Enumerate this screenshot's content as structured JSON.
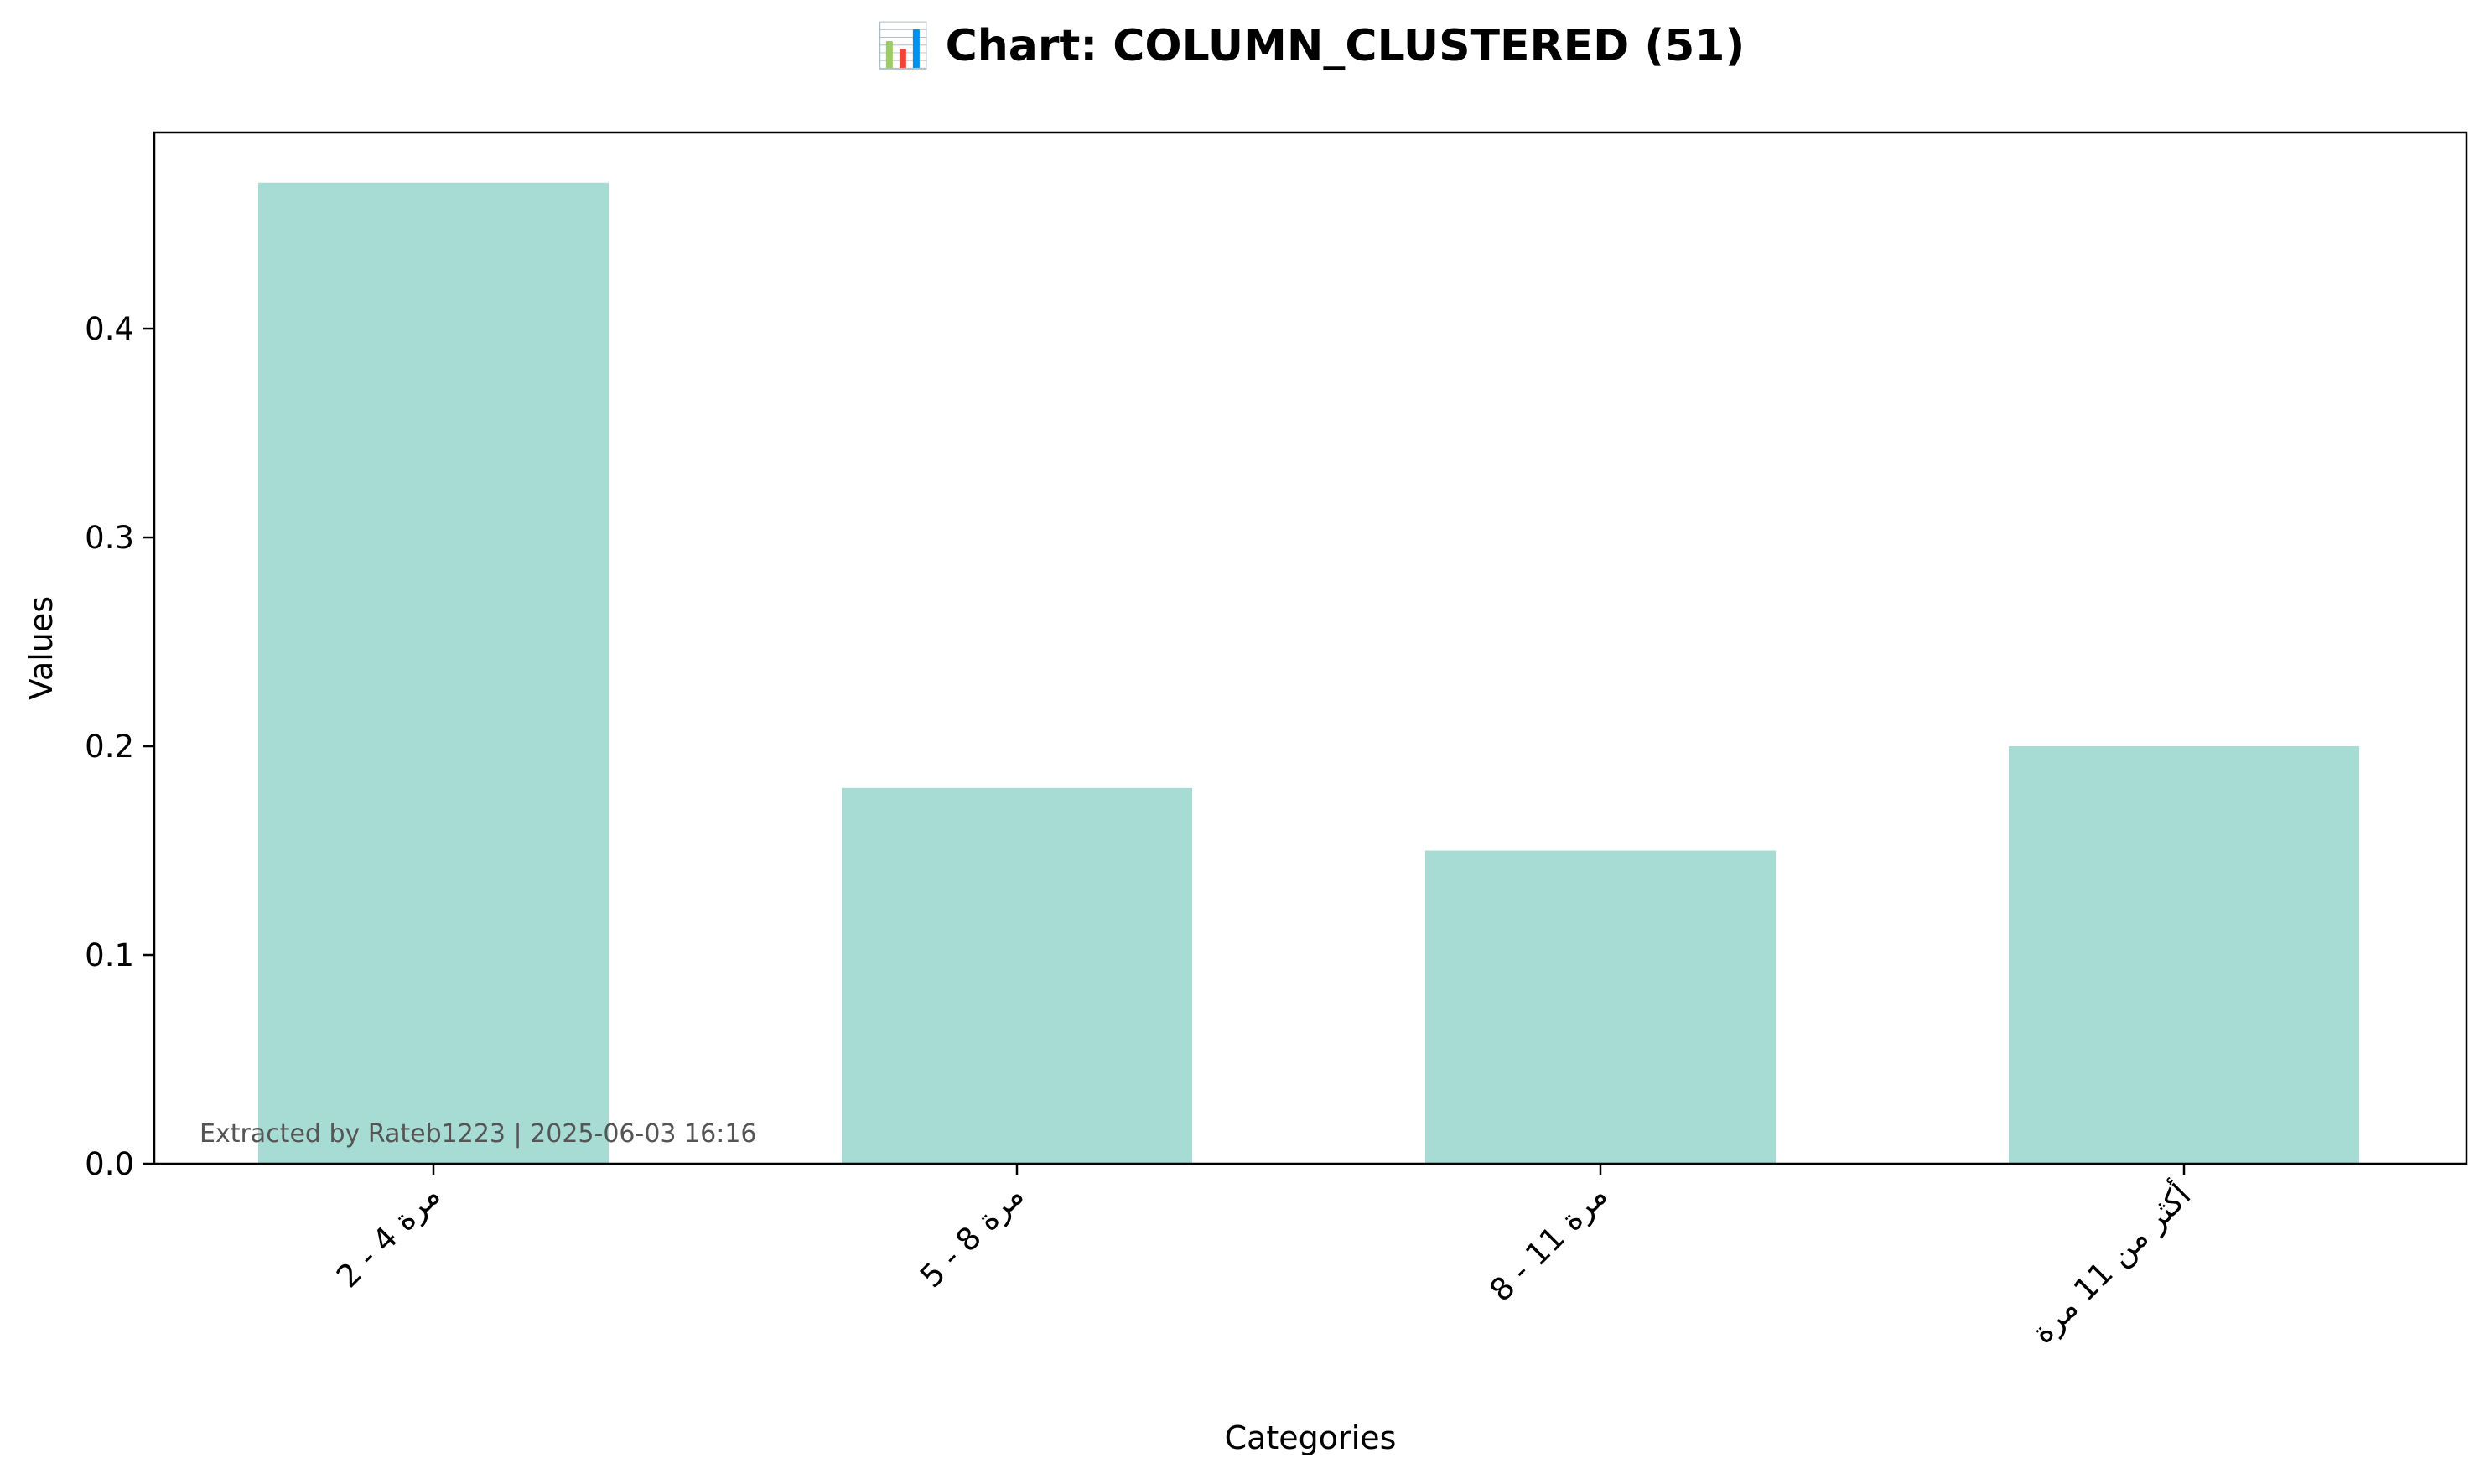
{
  "chart_data": {
    "type": "bar",
    "title": "📊 Chart: COLUMN_CLUSTERED (51)",
    "xlabel": "Categories",
    "ylabel": "Values",
    "categories": [
      "2 - 4 مرة",
      "5 - 8 مرة",
      "8 - 11 مرة",
      "أكثر من 11 مرة"
    ],
    "values": [
      0.47,
      0.18,
      0.15,
      0.2
    ],
    "ylim": [
      0,
      0.494
    ],
    "yticks": [
      0.0,
      0.1,
      0.2,
      0.3,
      0.4
    ],
    "ytick_labels": [
      "0.0",
      "0.1",
      "0.2",
      "0.3",
      "0.4"
    ],
    "bar_color": "#a6dcd4",
    "grid": false,
    "legend": false,
    "annotation": "Extracted by Rateb1223 | 2025-06-03 16:16"
  }
}
